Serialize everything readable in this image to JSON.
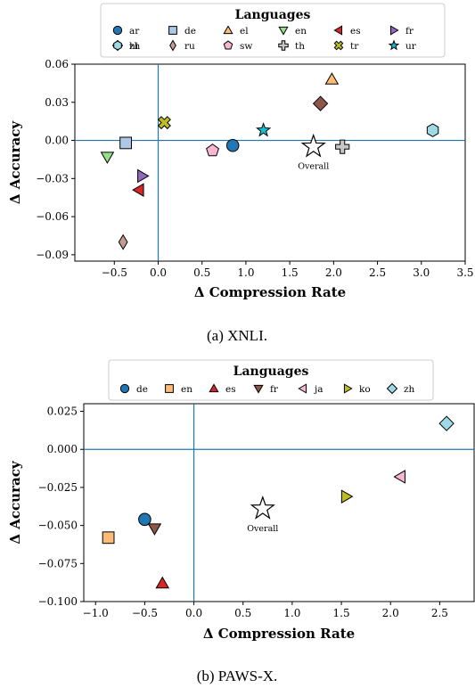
{
  "chart_data": [
    {
      "type": "scatter",
      "caption": "(a) XNLI.",
      "xlabel": "Δ Compression Rate",
      "ylabel": "Δ Accuracy",
      "xlim": [
        -0.95,
        3.5
      ],
      "ylim": [
        -0.095,
        0.06
      ],
      "xticks": [
        -0.5,
        0.0,
        0.5,
        1.0,
        1.5,
        2.0,
        2.5,
        3.0,
        3.5
      ],
      "xtick_labels": [
        "−0.5",
        "0.0",
        "0.5",
        "1.0",
        "1.5",
        "2.0",
        "2.5",
        "3.0",
        "3.5"
      ],
      "yticks": [
        0.06,
        0.03,
        0.0,
        -0.03,
        -0.06,
        -0.09
      ],
      "ytick_labels": [
        "0.06",
        "0.03",
        "0.00",
        "−0.03",
        "−0.06",
        "−0.09"
      ],
      "reference_lines": {
        "x": 0,
        "y": 0
      },
      "legend": {
        "title": "Languages",
        "placement": "top-center",
        "columns": 6
      },
      "series": [
        {
          "name": "ar",
          "marker": "circle",
          "color": "#1f77b4",
          "x": 0.85,
          "y": -0.004
        },
        {
          "name": "de",
          "marker": "square",
          "color": "#aec7e8",
          "x": -0.37,
          "y": -0.002
        },
        {
          "name": "el",
          "marker": "triangle-up",
          "color": "#ffbb78",
          "x": 1.98,
          "y": 0.048
        },
        {
          "name": "en",
          "marker": "triangle-down",
          "color": "#98df8a",
          "x": -0.58,
          "y": -0.013
        },
        {
          "name": "es",
          "marker": "triangle-left",
          "color": "#d62728",
          "x": -0.22,
          "y": -0.039
        },
        {
          "name": "fr",
          "marker": "triangle-right",
          "color": "#9467bd",
          "x": -0.18,
          "y": -0.028
        },
        {
          "name": "hi",
          "marker": "diamond",
          "color": "#8c564b",
          "x": 1.85,
          "y": 0.029
        },
        {
          "name": "ru",
          "marker": "thin-diamond",
          "color": "#c49c94",
          "x": -0.4,
          "y": -0.08
        },
        {
          "name": "sw",
          "marker": "pentagon",
          "color": "#f7b6d2",
          "x": 0.62,
          "y": -0.008
        },
        {
          "name": "th",
          "marker": "plus",
          "color": "#c7c7c7",
          "x": 2.1,
          "y": -0.005
        },
        {
          "name": "tr",
          "marker": "x",
          "color": "#bcbd22",
          "x": 0.07,
          "y": 0.014
        },
        {
          "name": "ur",
          "marker": "star",
          "color": "#17becf",
          "x": 1.2,
          "y": 0.008
        },
        {
          "name": "zh",
          "marker": "hexagon",
          "color": "#9edae5",
          "x": 3.13,
          "y": 0.008
        }
      ],
      "overall": {
        "label": "Overall",
        "x": 1.77,
        "y": -0.005
      }
    },
    {
      "type": "scatter",
      "caption": "(b) PAWS-X.",
      "xlabel": "Δ Compression Rate",
      "ylabel": "Δ Accuracy",
      "xlim": [
        -1.12,
        2.85
      ],
      "ylim": [
        -0.1,
        0.03
      ],
      "xticks": [
        -1.0,
        -0.5,
        0.0,
        0.5,
        1.0,
        1.5,
        2.0,
        2.5
      ],
      "xtick_labels": [
        "−1.0",
        "−0.5",
        "0.0",
        "0.5",
        "1.0",
        "1.5",
        "2.0",
        "2.5"
      ],
      "yticks": [
        0.025,
        0.0,
        -0.025,
        -0.05,
        -0.075,
        -0.1
      ],
      "ytick_labels": [
        "0.025",
        "0.000",
        "−0.025",
        "−0.050",
        "−0.075",
        "−0.100"
      ],
      "reference_lines": {
        "x": 0,
        "y": 0
      },
      "legend": {
        "title": "Languages",
        "placement": "top-center",
        "columns": 7
      },
      "series": [
        {
          "name": "de",
          "marker": "circle",
          "color": "#1f77b4",
          "x": -0.5,
          "y": -0.046
        },
        {
          "name": "en",
          "marker": "square",
          "color": "#ffbb78",
          "x": -0.87,
          "y": -0.058
        },
        {
          "name": "es",
          "marker": "triangle-up",
          "color": "#d62728",
          "x": -0.32,
          "y": -0.088
        },
        {
          "name": "fr",
          "marker": "triangle-down",
          "color": "#8c564b",
          "x": -0.4,
          "y": -0.052
        },
        {
          "name": "ja",
          "marker": "triangle-left",
          "color": "#f7b6d2",
          "x": 2.1,
          "y": -0.018
        },
        {
          "name": "ko",
          "marker": "triangle-right",
          "color": "#bcbd22",
          "x": 1.55,
          "y": -0.031
        },
        {
          "name": "zh",
          "marker": "diamond",
          "color": "#9edae5",
          "x": 2.57,
          "y": 0.017
        }
      ],
      "overall": {
        "label": "Overall",
        "x": 0.7,
        "y": -0.039
      }
    }
  ]
}
